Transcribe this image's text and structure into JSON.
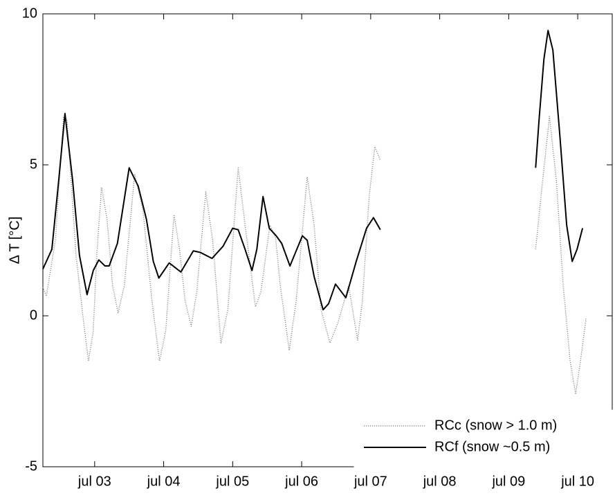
{
  "chart_data": {
    "type": "line",
    "y_label": "Δ T [°C]",
    "xlim": [
      2.25,
      10.5
    ],
    "xticks": [
      {
        "value": 3,
        "label": "jul 03"
      },
      {
        "value": 4,
        "label": "jul 04"
      },
      {
        "value": 5,
        "label": "jul 05"
      },
      {
        "value": 6,
        "label": "jul 06"
      },
      {
        "value": 7,
        "label": "jul 07"
      },
      {
        "value": 8,
        "label": "jul 08"
      },
      {
        "value": 9,
        "label": "jul 09"
      },
      {
        "value": 10,
        "label": "jul 10"
      }
    ],
    "ylim": [
      -5,
      10
    ],
    "yticks": [
      -5,
      0,
      5,
      10
    ],
    "legend": "lower right",
    "series": [
      {
        "name": "RCc (snow > 1.0 m)",
        "color": "#8c8c8c",
        "linestyle": "dotted",
        "x": [
          2.25,
          2.3,
          2.43,
          2.55,
          2.6,
          2.73,
          2.83,
          2.91,
          2.98,
          3.03,
          3.1,
          3.18,
          3.26,
          3.34,
          3.43,
          3.58,
          3.7,
          3.83,
          3.94,
          4.03,
          4.15,
          4.23,
          4.31,
          4.4,
          4.48,
          4.61,
          4.71,
          4.83,
          4.93,
          5.08,
          5.18,
          5.33,
          5.41,
          5.54,
          5.62,
          5.69,
          5.82,
          5.92,
          6.08,
          6.18,
          6.28,
          6.41,
          6.53,
          6.68,
          6.81,
          6.88,
          6.98,
          7.06,
          7.14,
          8.0,
          9.39,
          9.47,
          9.59,
          9.69,
          9.79,
          9.89,
          9.97,
          10.04,
          10.12
        ],
        "values": [
          0.95,
          0.65,
          2.5,
          6.6,
          6.5,
          2,
          0,
          -1.5,
          -0.5,
          2,
          4.25,
          3.2,
          1,
          0.1,
          1,
          4.7,
          3.5,
          0.5,
          -1.5,
          -0.5,
          3.35,
          2.2,
          0.5,
          -0.35,
          0.8,
          4.1,
          2.5,
          -0.9,
          0.2,
          4.9,
          3,
          0.3,
          0.8,
          3,
          2.6,
          1,
          -1.15,
          0.5,
          4.6,
          3,
          0.2,
          -0.9,
          -0.2,
          1,
          -0.8,
          0.5,
          4,
          5.6,
          5.15,
          null,
          2.2,
          4,
          6.6,
          4.5,
          1,
          -1.5,
          -2.6,
          -1.5,
          -0.1
        ]
      },
      {
        "name": "RCf (snow ~0.5 m)",
        "color": "#000000",
        "linestyle": "solid",
        "x": [
          2.25,
          2.38,
          2.48,
          2.57,
          2.68,
          2.78,
          2.89,
          2.98,
          3.06,
          3.15,
          3.21,
          3.33,
          3.5,
          3.63,
          3.75,
          3.85,
          3.93,
          4.08,
          4.25,
          4.43,
          4.53,
          4.7,
          4.86,
          5.0,
          5.08,
          5.18,
          5.28,
          5.35,
          5.44,
          5.53,
          5.63,
          5.71,
          5.83,
          6.01,
          6.08,
          6.18,
          6.31,
          6.39,
          6.49,
          6.59,
          6.64,
          6.79,
          6.94,
          7.04,
          7.14,
          8.0,
          9.39,
          9.44,
          9.51,
          9.57,
          9.64,
          9.74,
          9.84,
          9.92,
          9.99,
          10.07
        ],
        "values": [
          1.55,
          2.2,
          4.5,
          6.7,
          4.5,
          2,
          0.7,
          1.5,
          1.85,
          1.65,
          1.65,
          2.4,
          4.9,
          4.3,
          3.2,
          1.8,
          1.25,
          1.75,
          1.45,
          2.15,
          2.1,
          1.9,
          2.3,
          2.9,
          2.85,
          2.2,
          1.5,
          2.2,
          3.95,
          2.9,
          2.65,
          2.4,
          1.65,
          2.65,
          2.5,
          1.3,
          0.2,
          0.4,
          1.05,
          0.75,
          0.6,
          1.8,
          2.9,
          3.25,
          2.85,
          null,
          4.9,
          6.5,
          8.5,
          9.45,
          8.8,
          6,
          3,
          1.8,
          2.2,
          2.9
        ]
      }
    ]
  }
}
